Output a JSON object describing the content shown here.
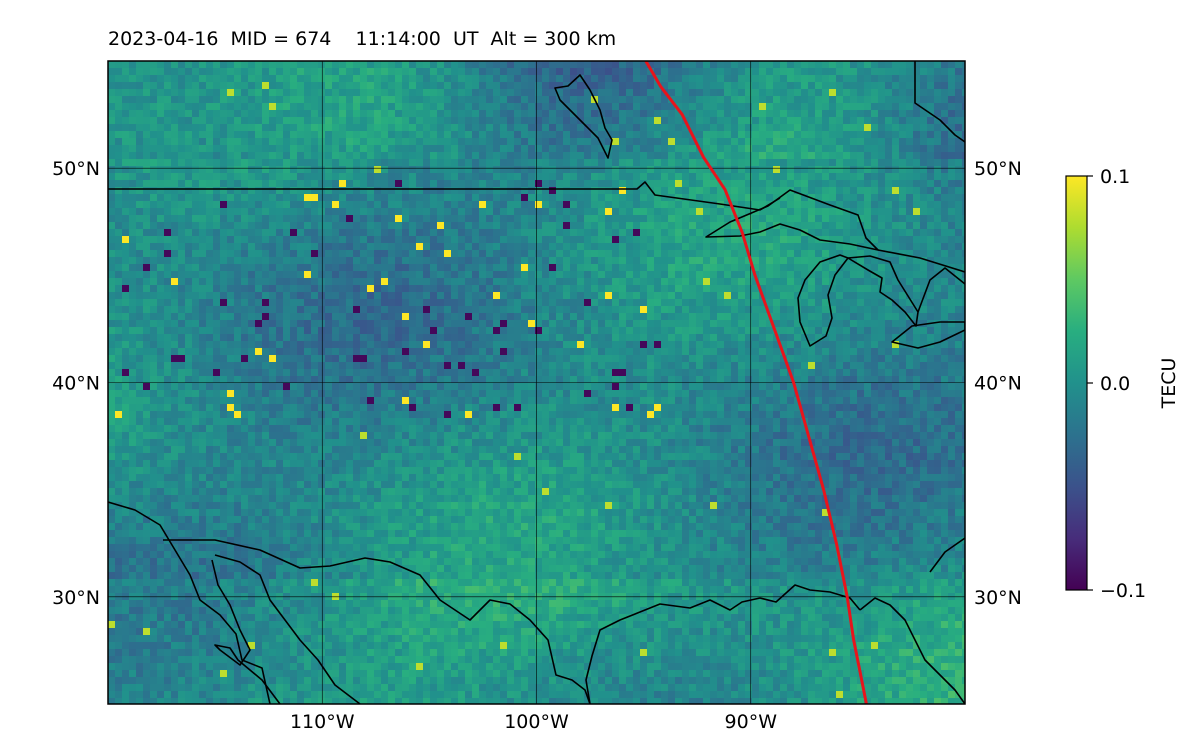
{
  "header": {
    "title": "2023-04-16  MID = 674    11:14:00  UT  Alt = 300 km"
  },
  "map": {
    "extent": {
      "lon_min": -120,
      "lon_max": -80,
      "lat_min": 25,
      "lat_max": 55
    },
    "lat_ticks": [
      {
        "value": 50,
        "label": "50°N"
      },
      {
        "value": 40,
        "label": "40°N"
      },
      {
        "value": 30,
        "label": "30°N"
      }
    ],
    "lon_ticks": [
      {
        "value": -110,
        "label": "110°W"
      },
      {
        "value": -100,
        "label": "100°W"
      },
      {
        "value": -90,
        "label": "90°W"
      }
    ],
    "grid": true,
    "colormap": "viridis",
    "terminator_color": "#e8141c",
    "coastline_color": "#000000",
    "terminator_path": [
      [
        -94.9,
        55
      ],
      [
        -94.2,
        53.8
      ],
      [
        -93.2,
        52.5
      ],
      [
        -92.2,
        50.5
      ],
      [
        -91.2,
        49
      ],
      [
        -90.4,
        47
      ],
      [
        -89.8,
        45
      ],
      [
        -88.9,
        42.5
      ],
      [
        -88,
        40
      ],
      [
        -87.3,
        37.5
      ],
      [
        -86.6,
        35
      ],
      [
        -86,
        32.5
      ],
      [
        -85.5,
        30
      ],
      [
        -85.2,
        28
      ],
      [
        -84.8,
        26
      ],
      [
        -84.6,
        25
      ]
    ]
  },
  "colorbar": {
    "label": "TECU",
    "ticks": [
      {
        "value": 0.1,
        "label": "0.1"
      },
      {
        "value": 0.0,
        "label": "0.0"
      },
      {
        "value": -0.1,
        "label": "−0.1"
      }
    ],
    "vmin": -0.1,
    "vmax": 0.1
  }
}
